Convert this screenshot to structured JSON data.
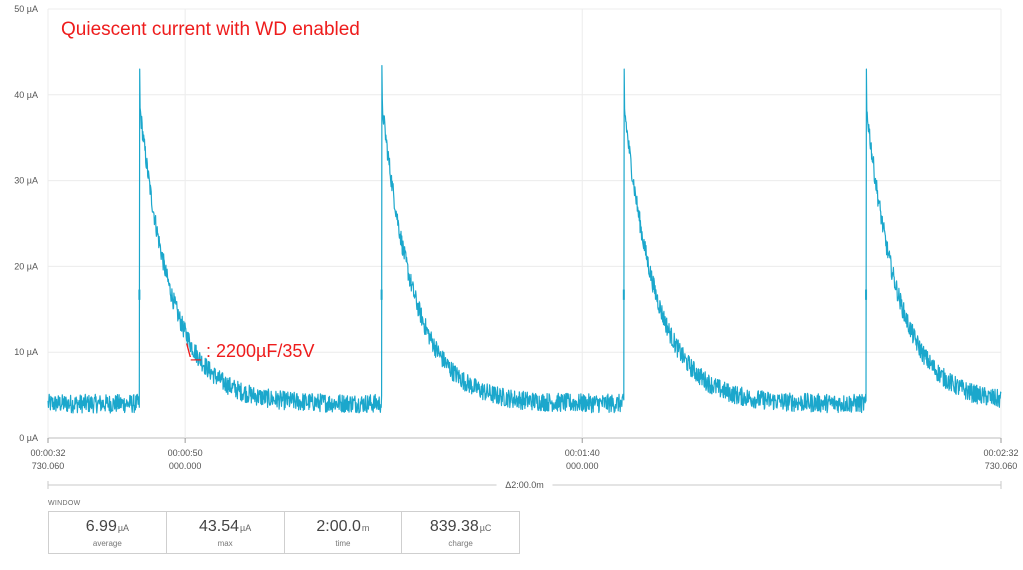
{
  "chart_data": {
    "type": "line",
    "title": "Quiescent current with WD enabled",
    "annotation": "\\_ : 2200µF/35V",
    "y_unit": "µA",
    "ylim": [
      0,
      50
    ],
    "y_ticks": [
      {
        "value": 0,
        "label": "0 µA"
      },
      {
        "value": 10,
        "label": "10 µA"
      },
      {
        "value": 20,
        "label": "20 µA"
      },
      {
        "value": 30,
        "label": "30 µA"
      },
      {
        "value": 40,
        "label": "40 µA"
      },
      {
        "value": 50,
        "label": "50 µA"
      }
    ],
    "xlim": [
      32.73006,
      152.73006
    ],
    "x_ticks": [
      {
        "value": 32.73006,
        "time": "00:00:32",
        "sub": "730.060"
      },
      {
        "value": 50,
        "time": "00:00:50",
        "sub": "000.000"
      },
      {
        "value": 100,
        "time": "00:01:40",
        "sub": "000.000"
      },
      {
        "value": 152.73006,
        "time": "00:02:32",
        "sub": "730.060"
      }
    ],
    "window_span_label": "Δ2:00.0m",
    "grid": true,
    "series_color": "#1ba7cc",
    "baseline": 4,
    "noise": 1.1,
    "decay_tau_s": 4.0,
    "pulses": [
      {
        "t": 44.3,
        "peak": 43.0,
        "pre": 17.3
      },
      {
        "t": 74.8,
        "peak": 43.4,
        "pre": 17.3
      },
      {
        "t": 105.3,
        "peak": 43.0,
        "pre": 17.3
      },
      {
        "t": 135.8,
        "peak": 43.0,
        "pre": 17.3
      }
    ]
  },
  "window": {
    "label": "WINDOW",
    "stats": [
      {
        "value": "6.99",
        "unit": "µA",
        "name": "average"
      },
      {
        "value": "43.54",
        "unit": "µA",
        "name": "max"
      },
      {
        "value": "2:00.0",
        "unit": "m",
        "name": "time"
      },
      {
        "value": "839.38",
        "unit": "µC",
        "name": "charge"
      }
    ]
  }
}
